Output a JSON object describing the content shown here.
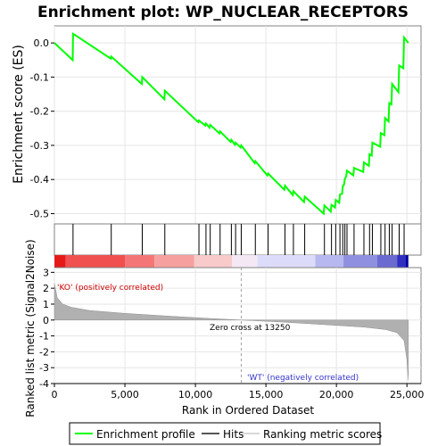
{
  "chart_data": {
    "type": "line",
    "title": "Enrichment plot: WP_NUCLEAR_RECEPTORS",
    "top_panel": {
      "ylabel": "Enrichment score (ES)",
      "ylim": [
        -0.53,
        0.05
      ],
      "yticks": [
        0.0,
        -0.1,
        -0.2,
        -0.3,
        -0.4,
        -0.5
      ],
      "ytick_labels": [
        "0.0",
        "-0.1",
        "-0.2",
        "-0.3",
        "-0.4",
        "-0.5"
      ],
      "grid": true,
      "series": [
        {
          "name": "Enrichment profile",
          "color": "#00ff00",
          "x": [
            0,
            1300,
            1320,
            4000,
            4030,
            6200,
            6230,
            7800,
            7830,
            10200,
            10250,
            10700,
            10750,
            11000,
            11050,
            11700,
            11750,
            12500,
            12550,
            12800,
            12850,
            13200,
            13250,
            14200,
            14250,
            15100,
            15150,
            16300,
            16350,
            16900,
            16950,
            17700,
            17750,
            19100,
            19150,
            19600,
            19650,
            19900,
            19950,
            20200,
            20250,
            20400,
            20450,
            20550,
            20600,
            20700,
            20750,
            21200,
            21250,
            21900,
            21950,
            22300,
            22350,
            22500,
            22550,
            23100,
            23150,
            23400,
            23450,
            23700,
            23750,
            23900,
            23950,
            24400,
            24450,
            24750,
            24800,
            25100
          ],
          "y": [
            0.0,
            -0.05,
            0.027,
            -0.046,
            -0.04,
            -0.12,
            -0.1,
            -0.165,
            -0.14,
            -0.232,
            -0.227,
            -0.242,
            -0.236,
            -0.248,
            -0.24,
            -0.265,
            -0.259,
            -0.29,
            -0.284,
            -0.298,
            -0.292,
            -0.306,
            -0.3,
            -0.352,
            -0.346,
            -0.388,
            -0.382,
            -0.43,
            -0.418,
            -0.446,
            -0.434,
            -0.466,
            -0.45,
            -0.5,
            -0.476,
            -0.494,
            -0.474,
            -0.482,
            -0.46,
            -0.468,
            -0.444,
            -0.442,
            -0.42,
            -0.414,
            -0.398,
            -0.39,
            -0.374,
            -0.388,
            -0.366,
            -0.378,
            -0.35,
            -0.36,
            -0.326,
            -0.33,
            -0.292,
            -0.304,
            -0.264,
            -0.27,
            -0.22,
            -0.23,
            -0.176,
            -0.18,
            -0.12,
            -0.144,
            -0.066,
            -0.074,
            0.016,
            0.0
          ]
        }
      ]
    },
    "hits_panel": {
      "series_name": "Hits",
      "hit_positions": [
        1320,
        4030,
        6230,
        7830,
        10250,
        10750,
        11050,
        11750,
        12550,
        12850,
        13250,
        14250,
        15150,
        16350,
        16950,
        17750,
        19150,
        19650,
        19950,
        20250,
        20450,
        20600,
        20750,
        21250,
        21950,
        22350,
        22550,
        23150,
        23450,
        23750,
        23950,
        24450,
        24800
      ]
    },
    "heatmap_bar": {
      "x": [
        0,
        800,
        5000,
        7100,
        9900,
        12600,
        14400,
        18500,
        20500,
        22900,
        24300,
        24900
      ],
      "colors": [
        "#e61919",
        "#f05050",
        "#f47676",
        "#f6a0a0",
        "#f8caca",
        "#f4e8f4",
        "#dcdcfa",
        "#b8b8f0",
        "#9090e0",
        "#6a6ad0",
        "#3030c0",
        "#0000a0"
      ]
    },
    "bottom_panel": {
      "ylabel": "Ranked list metric (Signal2Noise)",
      "xlabel": "Rank in Ordered Dataset",
      "series_name": "Ranking metric scores",
      "ylim": [
        -4,
        3.3
      ],
      "yticks": [
        3,
        2,
        1,
        0,
        -1,
        -2,
        -3,
        -4
      ],
      "ytick_labels": [
        "3",
        "2",
        "1",
        "0",
        "-1",
        "-2",
        "-3",
        "-4"
      ],
      "profile_x": [
        0,
        200,
        600,
        1200,
        2500,
        5000,
        8000,
        11000,
        13250,
        16000,
        19000,
        22000,
        23500,
        24300,
        24800,
        25000,
        25100
      ],
      "profile_y": [
        2.3,
        1.4,
        1.0,
        0.8,
        0.6,
        0.42,
        0.25,
        0.1,
        0.0,
        -0.12,
        -0.28,
        -0.45,
        -0.6,
        -0.8,
        -1.3,
        -2.5,
        -3.8
      ],
      "zero_cross_label": "Zero cross at 13250",
      "zero_cross_x": 13250,
      "pos_label": "'KO' (positively correlated)",
      "neg_label": "'WT' (negatively correlated)",
      "pos_color": "#cc0000",
      "neg_color": "#3333cc"
    },
    "x_axis": {
      "xlim": [
        0,
        26000
      ],
      "ticks": [
        0,
        5000,
        10000,
        15000,
        20000,
        25000
      ],
      "tick_labels": [
        "0",
        "5,000",
        "10,000",
        "15,000",
        "20,000",
        "25,000"
      ]
    },
    "legend": {
      "items": [
        {
          "label": "Enrichment profile",
          "color": "#00ff00"
        },
        {
          "label": "Hits",
          "color": "#555555"
        },
        {
          "label": "Ranking metric scores",
          "color": "#d8d8d8"
        }
      ],
      "placement": "bottom"
    }
  }
}
